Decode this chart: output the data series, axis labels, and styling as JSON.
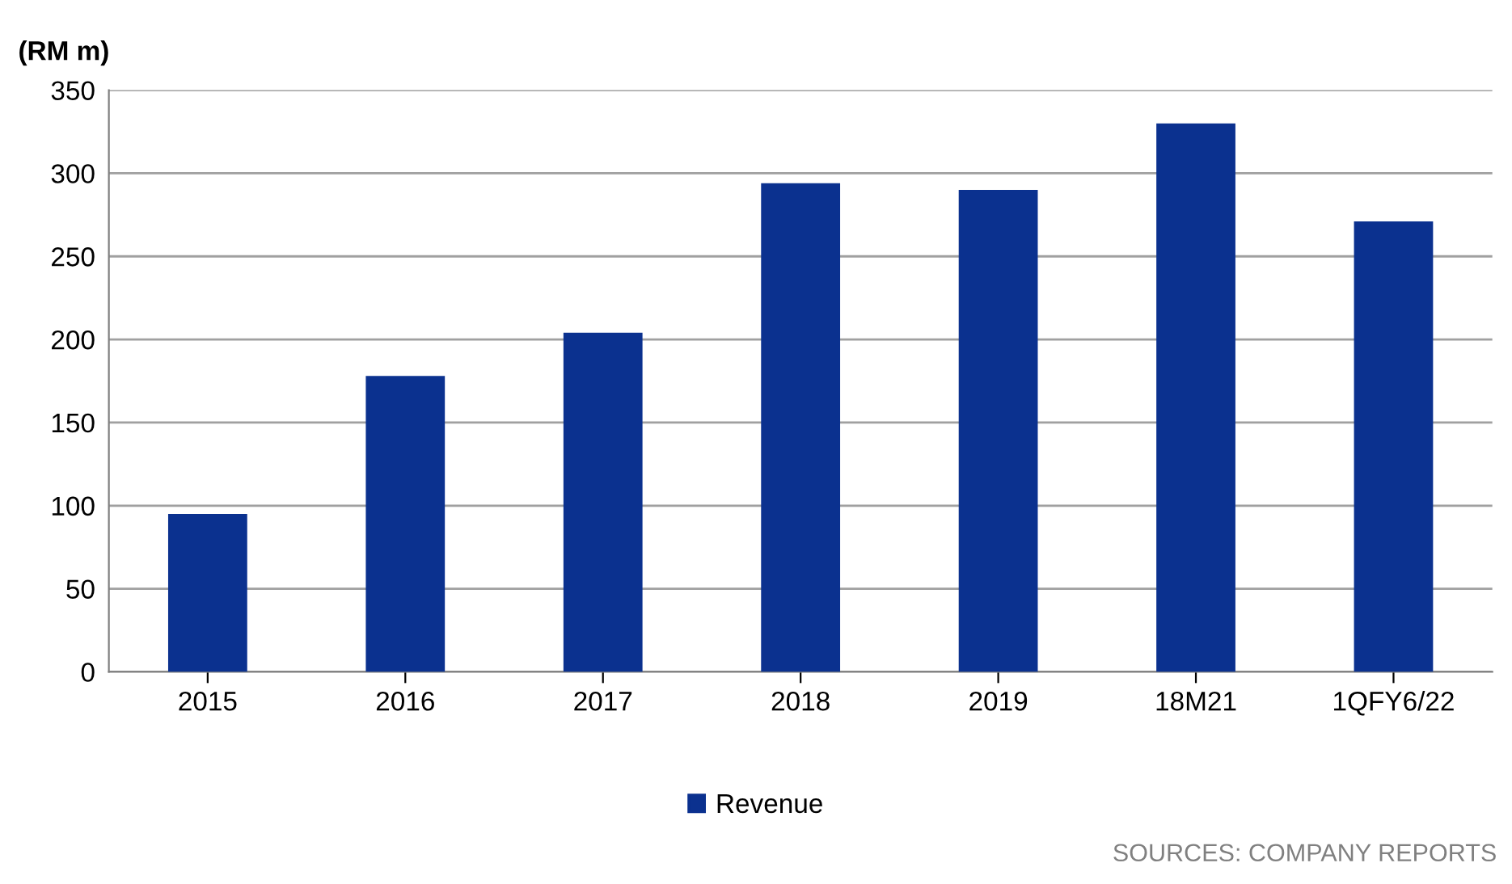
{
  "chart_data": {
    "type": "bar",
    "ylabel": "(RM m)",
    "categories": [
      "2015",
      "2016",
      "2017",
      "2018",
      "2019",
      "18M21",
      "1QFY6/22"
    ],
    "series": [
      {
        "name": "Revenue",
        "color": "#0b318f",
        "values": [
          95,
          178,
          204,
          294,
          290,
          330,
          271
        ]
      }
    ],
    "ylim": [
      0,
      350
    ],
    "yticks": [
      0,
      50,
      100,
      150,
      200,
      250,
      300,
      350
    ],
    "grid": "y",
    "legend": "bottom",
    "annotations": [
      "SOURCES: COMPANY REPORTS"
    ]
  }
}
